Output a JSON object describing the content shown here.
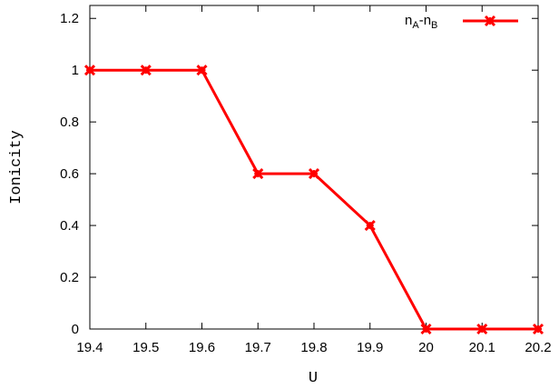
{
  "chart_data": {
    "type": "line",
    "title": "",
    "xlabel": "U",
    "ylabel": "Ionicity",
    "xlim": [
      19.4,
      20.2
    ],
    "ylim": [
      0,
      1.25
    ],
    "xticks": [
      19.4,
      19.5,
      19.6,
      19.7,
      19.8,
      19.9,
      20,
      20.1,
      20.2
    ],
    "xtick_labels": [
      "19.4",
      "19.5",
      "19.6",
      "19.7",
      "19.8",
      "19.9",
      "20",
      "20.1",
      "20.2"
    ],
    "yticks": [
      0,
      0.2,
      0.4,
      0.6,
      0.8,
      1,
      1.2
    ],
    "ytick_labels": [
      "0",
      "0.2",
      "0.4",
      "0.6",
      "0.8",
      "1",
      "1.2"
    ],
    "grid": false,
    "legend_position": "top-right",
    "series": [
      {
        "name": "nA-nB",
        "legend": {
          "n1": "n",
          "sub1": "A",
          "dash": "-",
          "n2": "n",
          "sub2": "B"
        },
        "color": "#ff0000",
        "marker": "x",
        "x": [
          19.4,
          19.5,
          19.6,
          19.7,
          19.8,
          19.9,
          20.0,
          20.1,
          20.2
        ],
        "y": [
          1,
          1,
          1,
          0.6,
          0.6,
          0.4,
          0,
          0,
          0
        ]
      }
    ]
  }
}
